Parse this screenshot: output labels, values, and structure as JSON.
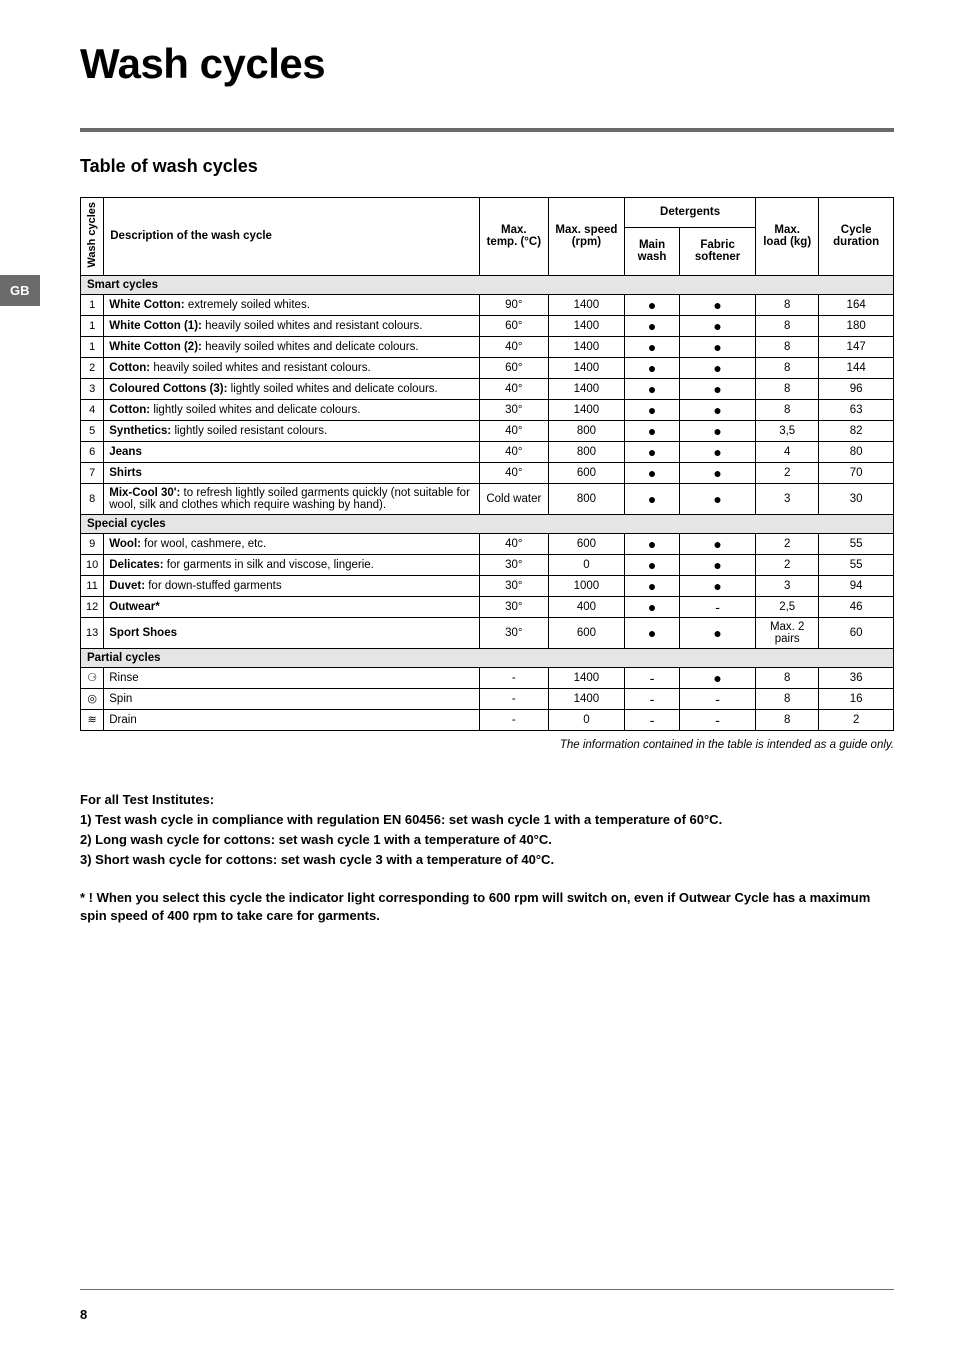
{
  "langTab": "GB",
  "title": "Wash cycles",
  "subtitle": "Table of wash cycles",
  "headers": {
    "cycleNum": "Wash cycles",
    "desc": "Description of the wash cycle",
    "temp": "Max. temp. (°C)",
    "speed": "Max. speed (rpm)",
    "detergents": "Detergents",
    "mainWash": "Main wash",
    "softener": "Fabric softener",
    "load": "Max. load (kg)",
    "duration": "Cycle duration"
  },
  "sections": {
    "smart": "Smart cycles",
    "special": "Special cycles",
    "partial": "Partial cycles"
  },
  "rows": [
    {
      "n": "1",
      "bold": "White Cotton:",
      "rest": " extremely soiled whites.",
      "t": "90°",
      "s": "1400",
      "mw": "●",
      "fs": "●",
      "l": "8",
      "d": "164"
    },
    {
      "n": "1",
      "bold": "White Cotton (1):",
      "rest": " heavily soiled whites and resistant colours.",
      "t": "60°",
      "s": "1400",
      "mw": "●",
      "fs": "●",
      "l": "8",
      "d": "180"
    },
    {
      "n": "1",
      "bold": "White Cotton (2):",
      "rest": " heavily soiled whites and delicate colours.",
      "t": "40°",
      "s": "1400",
      "mw": "●",
      "fs": "●",
      "l": "8",
      "d": "147"
    },
    {
      "n": "2",
      "bold": "Cotton:",
      "rest": " heavily soiled whites and resistant colours.",
      "t": "60°",
      "s": "1400",
      "mw": "●",
      "fs": "●",
      "l": "8",
      "d": "144"
    },
    {
      "n": "3",
      "bold": "Coloured Cottons (3):",
      "rest": " lightly soiled whites and delicate colours.",
      "t": "40°",
      "s": "1400",
      "mw": "●",
      "fs": "●",
      "l": "8",
      "d": "96"
    },
    {
      "n": "4",
      "bold": "Cotton:",
      "rest": " lightly soiled whites and delicate colours.",
      "t": "30°",
      "s": "1400",
      "mw": "●",
      "fs": "●",
      "l": "8",
      "d": "63"
    },
    {
      "n": "5",
      "bold": "Synthetics:",
      "rest": " lightly soiled resistant colours.",
      "t": "40°",
      "s": "800",
      "mw": "●",
      "fs": "●",
      "l": "3,5",
      "d": "82"
    },
    {
      "n": "6",
      "bold": "Jeans",
      "rest": "",
      "t": "40°",
      "s": "800",
      "mw": "●",
      "fs": "●",
      "l": "4",
      "d": "80"
    },
    {
      "n": "7",
      "bold": "Shirts",
      "rest": "",
      "t": "40°",
      "s": "600",
      "mw": "●",
      "fs": "●",
      "l": "2",
      "d": "70"
    },
    {
      "n": "8",
      "bold": "Mix-Cool 30':",
      "rest": " to refresh lightly soiled garments quickly (not suitable for wool, silk and clothes which require washing by hand).",
      "t": "Cold water",
      "s": "800",
      "mw": "●",
      "fs": "●",
      "l": "3",
      "d": "30"
    }
  ],
  "specialRows": [
    {
      "n": "9",
      "bold": "Wool:",
      "rest": " for wool, cashmere, etc.",
      "t": "40°",
      "s": "600",
      "mw": "●",
      "fs": "●",
      "l": "2",
      "d": "55"
    },
    {
      "n": "10",
      "bold": "Delicates:",
      "rest": " for garments in silk and viscose, lingerie.",
      "t": "30°",
      "s": "0",
      "mw": "●",
      "fs": "●",
      "l": "2",
      "d": "55"
    },
    {
      "n": "11",
      "bold": "Duvet:",
      "rest": " for down-stuffed garments",
      "t": "30°",
      "s": "1000",
      "mw": "●",
      "fs": "●",
      "l": "3",
      "d": "94"
    },
    {
      "n": "12",
      "bold": "Outwear*",
      "rest": "",
      "t": "30°",
      "s": "400",
      "mw": "●",
      "fs": "-",
      "l": "2,5",
      "d": "46"
    },
    {
      "n": "13",
      "bold": "Sport Shoes",
      "rest": "",
      "t": "30°",
      "s": "600",
      "mw": "●",
      "fs": "●",
      "l": "Max. 2 pairs",
      "d": "60"
    }
  ],
  "partialRows": [
    {
      "n": "⚆",
      "bold": "",
      "rest": "Rinse",
      "t": "-",
      "s": "1400",
      "mw": "-",
      "fs": "●",
      "l": "8",
      "d": "36"
    },
    {
      "n": "◎",
      "bold": "",
      "rest": "Spin",
      "t": "-",
      "s": "1400",
      "mw": "-",
      "fs": "-",
      "l": "8",
      "d": "16"
    },
    {
      "n": "≋",
      "bold": "",
      "rest": "Drain",
      "t": "-",
      "s": "0",
      "mw": "-",
      "fs": "-",
      "l": "8",
      "d": "2"
    }
  ],
  "caption": "The information contained in the table is intended as a guide only.",
  "notes": {
    "heading": "For all Test Institutes:",
    "lines": [
      "1) Test wash cycle in compliance with regulation EN 60456: set wash cycle 1 with a temperature of 60°C.",
      "2) Long wash cycle for cottons: set wash cycle 1 with a temperature of 40°C.",
      "3) Short wash cycle for cottons: set wash cycle 3 with a temperature of 40°C."
    ]
  },
  "footnote": "* ! When you select this cycle the indicator light corresponding to 600 rpm will switch on, even if Outwear Cycle has a maximum spin speed of 400 rpm to take care for garments.",
  "pageNum": "8"
}
